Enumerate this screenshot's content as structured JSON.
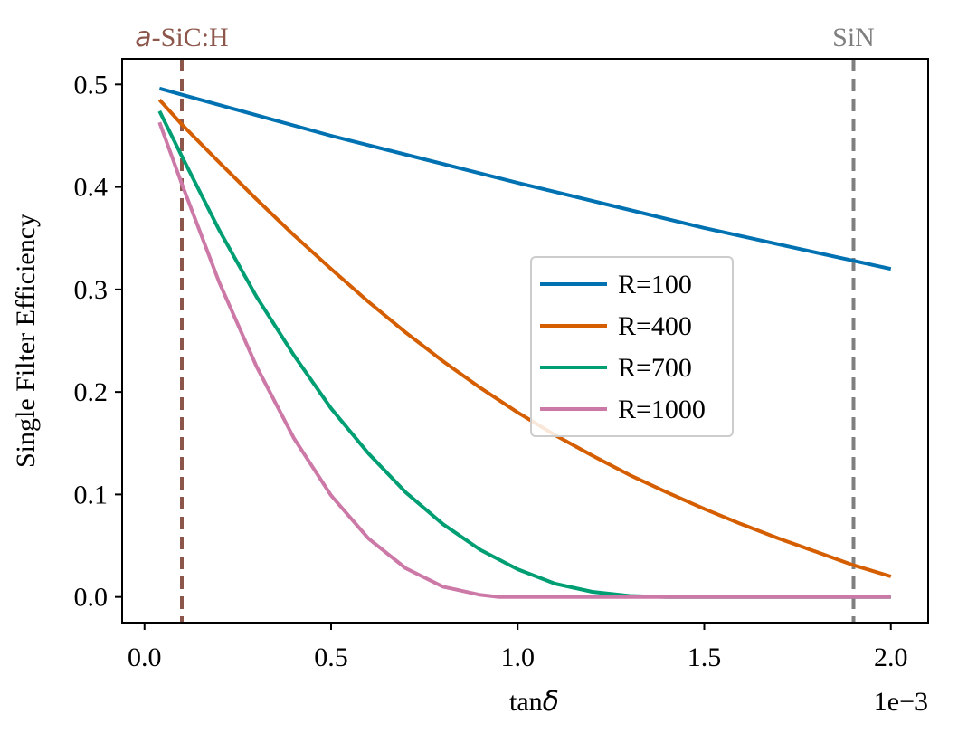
{
  "chart_data": {
    "type": "line",
    "xlabel_prefix": "tan",
    "xlabel_symbol": "δ",
    "ylabel": "Single Filter Efficiency",
    "x_scale_label": "1e−3",
    "xlim": [
      -0.06,
      2.1
    ],
    "ylim": [
      -0.025,
      0.525
    ],
    "xticks": [
      0.0,
      0.5,
      1.0,
      1.5,
      2.0
    ],
    "xtick_labels": [
      "0.0",
      "0.5",
      "1.0",
      "1.5",
      "2.0"
    ],
    "yticks": [
      0.0,
      0.1,
      0.2,
      0.3,
      0.4,
      0.5
    ],
    "ytick_labels": [
      "0.0",
      "0.1",
      "0.2",
      "0.3",
      "0.4",
      "0.5"
    ],
    "grid": false,
    "legend_position": "center-right",
    "series": [
      {
        "name": "R=100",
        "color": "#0072b2",
        "x": [
          0.04,
          0.25,
          0.5,
          0.75,
          1.0,
          1.25,
          1.5,
          1.75,
          2.0
        ],
        "y": [
          0.496,
          0.475,
          0.45,
          0.427,
          0.404,
          0.382,
          0.36,
          0.34,
          0.32
        ]
      },
      {
        "name": "R=400",
        "color": "#d55e00",
        "x": [
          0.04,
          0.1,
          0.2,
          0.3,
          0.4,
          0.5,
          0.6,
          0.7,
          0.8,
          0.9,
          1.0,
          1.1,
          1.2,
          1.3,
          1.4,
          1.5,
          1.6,
          1.7,
          1.8,
          1.9,
          2.0
        ],
        "y": [
          0.485,
          0.461,
          0.424,
          0.388,
          0.353,
          0.32,
          0.288,
          0.258,
          0.23,
          0.204,
          0.18,
          0.158,
          0.138,
          0.119,
          0.102,
          0.086,
          0.071,
          0.057,
          0.044,
          0.031,
          0.02
        ]
      },
      {
        "name": "R=700",
        "color": "#009e73",
        "x": [
          0.04,
          0.1,
          0.2,
          0.3,
          0.4,
          0.5,
          0.6,
          0.7,
          0.8,
          0.9,
          1.0,
          1.1,
          1.2,
          1.3,
          1.4,
          1.5,
          1.75,
          2.0
        ],
        "y": [
          0.474,
          0.43,
          0.358,
          0.293,
          0.236,
          0.184,
          0.14,
          0.102,
          0.071,
          0.046,
          0.027,
          0.013,
          0.005,
          0.001,
          0.0,
          0.0,
          0.0,
          0.0
        ]
      },
      {
        "name": "R=1000",
        "color": "#cc79a7",
        "x": [
          0.04,
          0.1,
          0.2,
          0.3,
          0.4,
          0.5,
          0.6,
          0.7,
          0.8,
          0.9,
          0.95,
          1.0,
          1.25,
          1.5,
          1.75,
          2.0
        ],
        "y": [
          0.463,
          0.403,
          0.307,
          0.225,
          0.155,
          0.099,
          0.057,
          0.028,
          0.01,
          0.002,
          0.0,
          0.0,
          0.0,
          0.0,
          0.0,
          0.0
        ]
      }
    ],
    "vlines": [
      {
        "x": 0.1,
        "label_italic": "a",
        "label_rest": "-SiC:H",
        "color": "#8c564b"
      },
      {
        "x": 1.9,
        "label_italic": "",
        "label_rest": "SiN",
        "color": "#7f7f7f"
      }
    ]
  }
}
